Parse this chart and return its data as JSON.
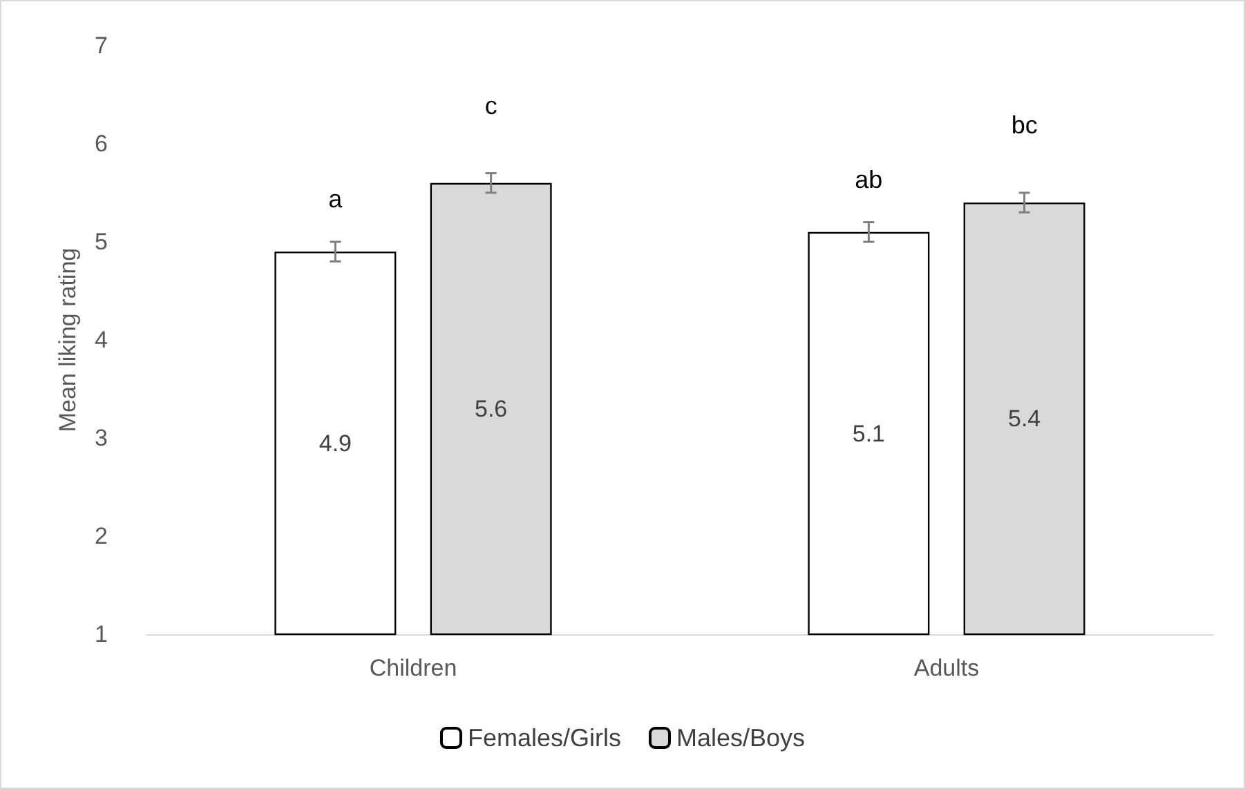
{
  "chart_data": {
    "type": "bar",
    "ylabel": "Mean liking rating",
    "categories": [
      "Children",
      "Adults"
    ],
    "series": [
      {
        "name": "Females/Girls",
        "color": "#ffffff",
        "values": [
          4.9,
          5.1
        ],
        "errors": [
          0.1,
          0.1
        ]
      },
      {
        "name": "Males/Boys",
        "color": "#d9d9d9",
        "values": [
          5.6,
          5.4
        ],
        "errors": [
          0.1,
          0.1
        ]
      }
    ],
    "ylim": [
      1,
      7
    ],
    "yticks": [
      1,
      2,
      3,
      4,
      5,
      6,
      7
    ],
    "grid": false,
    "legend": "bottom",
    "data_labels": true,
    "annotations": [
      "a",
      "ab",
      "c",
      "bc"
    ]
  }
}
